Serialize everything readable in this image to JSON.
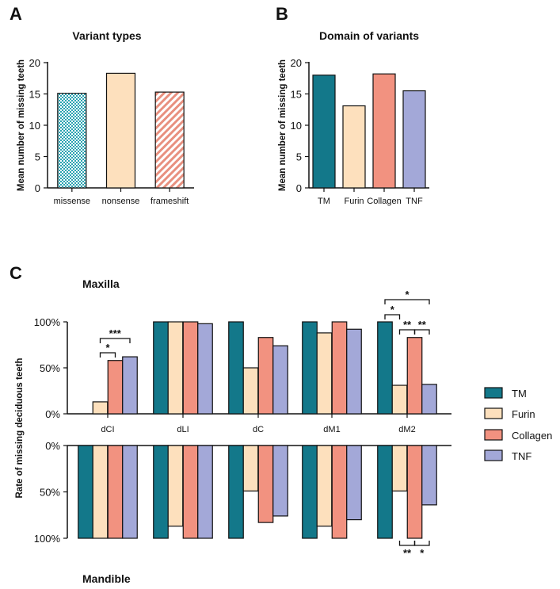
{
  "colors": {
    "TM": "#13788a",
    "Furin": "#fde0bd",
    "Collagen": "#f29280",
    "TNF": "#a3a8d8",
    "missense": "#4fb7c2",
    "nonsense": "#fde0bd",
    "frameshift": "#f29280",
    "axis": "#111111"
  },
  "chart_data": [
    {
      "panel": "A",
      "type": "bar",
      "title": "Variant types",
      "ylabel": "Mean number of missing teeth",
      "xlabel": "",
      "ylim": [
        0,
        20
      ],
      "yticks": [
        "0",
        "5",
        "10",
        "15",
        "20"
      ],
      "categories": [
        "missense",
        "nonsense",
        "frameshift"
      ],
      "values": [
        15.1,
        18.3,
        15.3
      ],
      "fills": [
        "checker",
        "solid",
        "hatched"
      ]
    },
    {
      "panel": "B",
      "type": "bar",
      "title": "Domain of variants",
      "ylabel": "Mean number of missing teeth",
      "xlabel": "",
      "ylim": [
        0,
        20
      ],
      "yticks": [
        "0",
        "5",
        "10",
        "15",
        "20"
      ],
      "categories": [
        "TM",
        "Furin",
        "Collagen",
        "TNF"
      ],
      "values": [
        18.0,
        13.1,
        18.2,
        15.5
      ]
    },
    {
      "panel": "C",
      "type": "bar",
      "title_top": "Maxilla",
      "title_bottom": "Mandible",
      "ylabel": "Rate of missing deciduous teeth",
      "ylim": [
        0,
        100
      ],
      "yticks_top": [
        "0%",
        "50%",
        "100%"
      ],
      "yticks_bottom": [
        "0%",
        "50%",
        "100%"
      ],
      "categories": [
        "dCI",
        "dLI",
        "dC",
        "dM1",
        "dM2"
      ],
      "legend": [
        "TM",
        "Furin",
        "Collagen",
        "TNF"
      ],
      "legend_position": "right",
      "series_maxilla": [
        {
          "name": "TM",
          "values": [
            0,
            100,
            100,
            100,
            100
          ]
        },
        {
          "name": "Furin",
          "values": [
            13,
            100,
            50,
            88,
            31
          ]
        },
        {
          "name": "Collagen",
          "values": [
            58,
            100,
            83,
            100,
            83
          ]
        },
        {
          "name": "TNF",
          "values": [
            62,
            98,
            74,
            92,
            32
          ]
        }
      ],
      "series_mandible": [
        {
          "name": "TM",
          "values": [
            100,
            100,
            100,
            100,
            100
          ]
        },
        {
          "name": "Furin",
          "values": [
            100,
            87,
            49,
            87,
            49
          ]
        },
        {
          "name": "Collagen",
          "values": [
            100,
            100,
            83,
            100,
            100
          ]
        },
        {
          "name": "TNF",
          "values": [
            100,
            100,
            76,
            80,
            64
          ]
        }
      ],
      "significance_maxilla": [
        {
          "cat": 0,
          "from": "Furin",
          "to": "Collagen",
          "label": "*",
          "level": 0
        },
        {
          "cat": 0,
          "from": "Furin",
          "to": "TNF",
          "label": "***",
          "level": 1
        },
        {
          "cat": 4,
          "from": "TM",
          "to": "Furin",
          "label": "*",
          "level": 0
        },
        {
          "cat": 4,
          "from": "Furin",
          "to": "Collagen",
          "label": "**",
          "level": 1
        },
        {
          "cat": 4,
          "from": "Collagen",
          "to": "TNF",
          "label": "**",
          "level": 1
        },
        {
          "cat": 4,
          "from": "TM",
          "to": "TNF",
          "label": "*",
          "level": 2
        }
      ],
      "significance_mandible": [
        {
          "cat": 4,
          "from": "Furin",
          "to": "Collagen",
          "label": "**"
        },
        {
          "cat": 4,
          "from": "Collagen",
          "to": "TNF",
          "label": "*"
        }
      ]
    }
  ],
  "panel_labels": [
    "A",
    "B",
    "C"
  ]
}
